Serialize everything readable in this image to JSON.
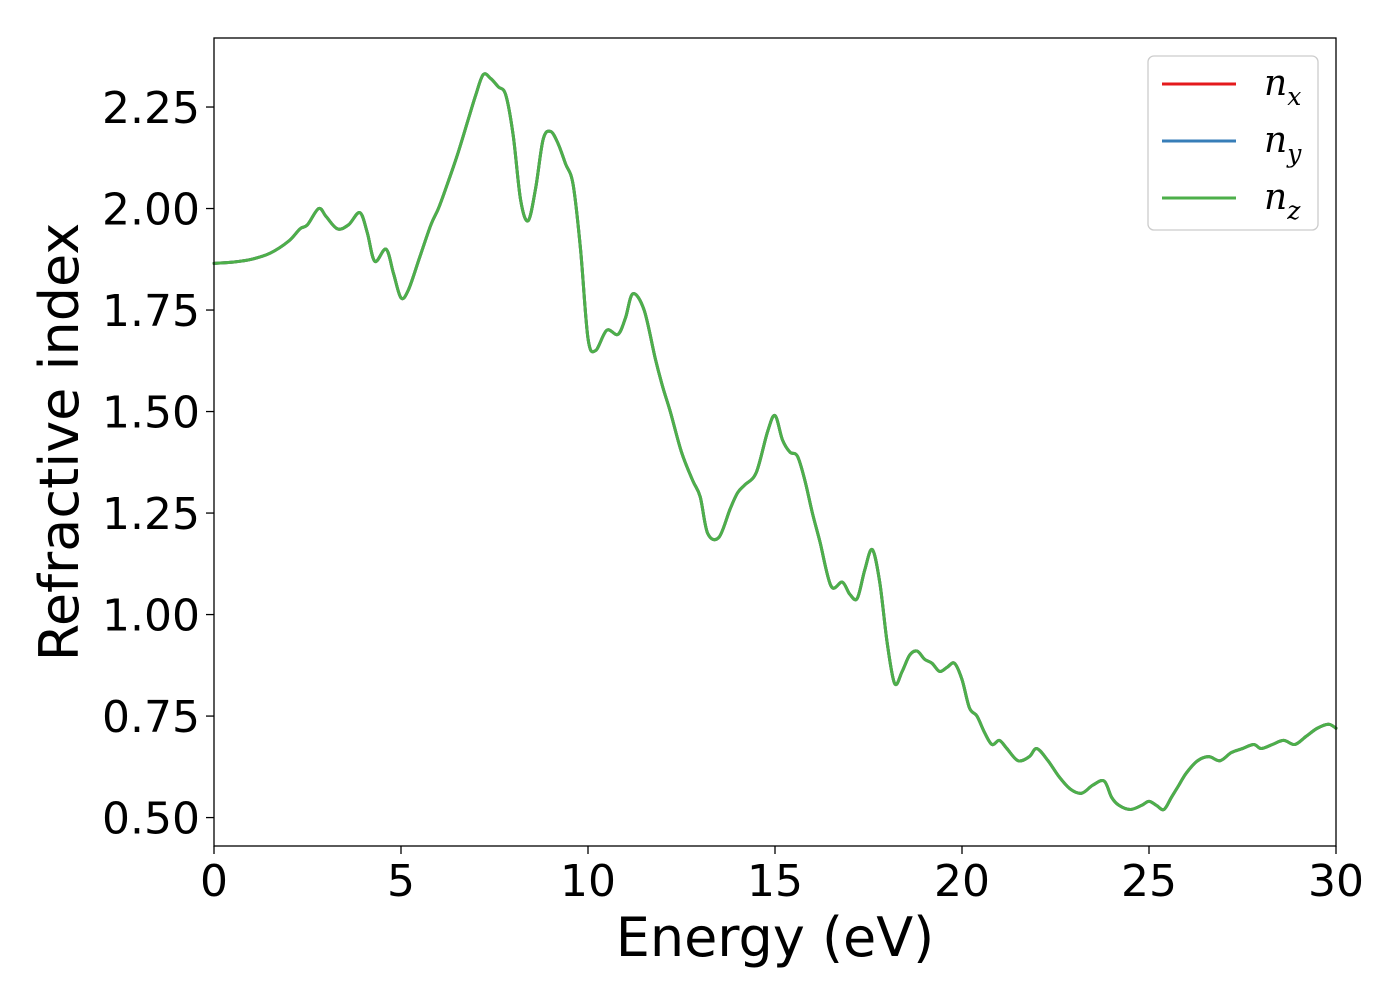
{
  "chart_data": {
    "type": "line",
    "xlabel": "Energy (eV)",
    "ylabel": "Refractive index",
    "xlim": [
      0,
      30
    ],
    "ylim": [
      0.43,
      2.42
    ],
    "xticks": [
      {
        "value": 0,
        "label": "0"
      },
      {
        "value": 5,
        "label": "5"
      },
      {
        "value": 10,
        "label": "10"
      },
      {
        "value": 15,
        "label": "15"
      },
      {
        "value": 20,
        "label": "20"
      },
      {
        "value": 25,
        "label": "25"
      },
      {
        "value": 30,
        "label": "30"
      }
    ],
    "yticks": [
      {
        "value": 0.5,
        "label": "0.50"
      },
      {
        "value": 0.75,
        "label": "0.75"
      },
      {
        "value": 1.0,
        "label": "1.00"
      },
      {
        "value": 1.25,
        "label": "1.25"
      },
      {
        "value": 1.5,
        "label": "1.50"
      },
      {
        "value": 1.75,
        "label": "1.75"
      },
      {
        "value": 2.0,
        "label": "2.00"
      },
      {
        "value": 2.25,
        "label": "2.25"
      }
    ],
    "grid": false,
    "legend": {
      "placement": "top-right",
      "entries": [
        {
          "base": "n",
          "sub": "x",
          "color": "#e41a1c"
        },
        {
          "base": "n",
          "sub": "y",
          "color": "#377eb8"
        },
        {
          "base": "n",
          "sub": "z",
          "color": "#4daf4a"
        }
      ]
    },
    "x": [
      0,
      0.5,
      1,
      1.5,
      2,
      2.3,
      2.5,
      2.8,
      3,
      3.3,
      3.6,
      3.9,
      4.1,
      4.3,
      4.6,
      4.8,
      5,
      5.2,
      5.5,
      5.8,
      6,
      6.2,
      6.5,
      6.8,
      7,
      7.2,
      7.4,
      7.6,
      7.8,
      8,
      8.2,
      8.4,
      8.6,
      8.8,
      9,
      9.2,
      9.4,
      9.6,
      9.8,
      10,
      10.2,
      10.5,
      10.8,
      11,
      11.2,
      11.5,
      11.8,
      12,
      12.2,
      12.5,
      12.8,
      13,
      13.2,
      13.5,
      13.8,
      14,
      14.2,
      14.5,
      14.8,
      15,
      15.2,
      15.4,
      15.6,
      15.8,
      16,
      16.2,
      16.5,
      16.8,
      17,
      17.2,
      17.4,
      17.6,
      17.8,
      18,
      18.2,
      18.4,
      18.6,
      18.8,
      19,
      19.2,
      19.4,
      19.6,
      19.8,
      20,
      20.2,
      20.4,
      20.6,
      20.8,
      21,
      21.2,
      21.5,
      21.8,
      22,
      22.3,
      22.6,
      22.9,
      23.2,
      23.5,
      23.8,
      24,
      24.2,
      24.5,
      24.8,
      25,
      25.2,
      25.4,
      25.6,
      25.8,
      26,
      26.3,
      26.6,
      26.9,
      27.2,
      27.5,
      27.8,
      28,
      28.3,
      28.6,
      28.9,
      29.2,
      29.5,
      29.8,
      30
    ],
    "series": [
      {
        "color": "#e41a1c",
        "values": [
          1.865,
          1.868,
          1.875,
          1.89,
          1.92,
          1.95,
          1.96,
          2.0,
          1.98,
          1.95,
          1.96,
          1.99,
          1.94,
          1.87,
          1.9,
          1.84,
          1.78,
          1.8,
          1.88,
          1.96,
          2.0,
          2.05,
          2.13,
          2.22,
          2.28,
          2.33,
          2.32,
          2.3,
          2.28,
          2.18,
          2.02,
          1.97,
          2.05,
          2.17,
          2.19,
          2.16,
          2.11,
          2.06,
          1.9,
          1.68,
          1.65,
          1.7,
          1.69,
          1.73,
          1.79,
          1.75,
          1.63,
          1.56,
          1.5,
          1.4,
          1.33,
          1.29,
          1.2,
          1.19,
          1.26,
          1.3,
          1.32,
          1.35,
          1.45,
          1.49,
          1.43,
          1.4,
          1.39,
          1.33,
          1.25,
          1.18,
          1.07,
          1.08,
          1.05,
          1.04,
          1.11,
          1.16,
          1.08,
          0.93,
          0.83,
          0.86,
          0.9,
          0.91,
          0.89,
          0.88,
          0.86,
          0.87,
          0.88,
          0.84,
          0.77,
          0.75,
          0.71,
          0.68,
          0.69,
          0.67,
          0.64,
          0.65,
          0.67,
          0.64,
          0.6,
          0.57,
          0.56,
          0.58,
          0.59,
          0.55,
          0.53,
          0.52,
          0.53,
          0.54,
          0.53,
          0.52,
          0.55,
          0.58,
          0.61,
          0.64,
          0.65,
          0.64,
          0.66,
          0.67,
          0.68,
          0.67,
          0.68,
          0.69,
          0.68,
          0.7,
          0.72,
          0.73,
          0.72
        ]
      },
      {
        "color": "#377eb8",
        "values": [
          1.865,
          1.868,
          1.875,
          1.89,
          1.92,
          1.95,
          1.96,
          2.0,
          1.98,
          1.95,
          1.96,
          1.99,
          1.94,
          1.87,
          1.9,
          1.84,
          1.78,
          1.8,
          1.88,
          1.96,
          2.0,
          2.05,
          2.13,
          2.22,
          2.28,
          2.33,
          2.32,
          2.3,
          2.28,
          2.18,
          2.02,
          1.97,
          2.05,
          2.17,
          2.19,
          2.16,
          2.11,
          2.06,
          1.9,
          1.68,
          1.65,
          1.7,
          1.69,
          1.73,
          1.79,
          1.75,
          1.63,
          1.56,
          1.5,
          1.4,
          1.33,
          1.29,
          1.2,
          1.19,
          1.26,
          1.3,
          1.32,
          1.35,
          1.45,
          1.49,
          1.43,
          1.4,
          1.39,
          1.33,
          1.25,
          1.18,
          1.07,
          1.08,
          1.05,
          1.04,
          1.11,
          1.16,
          1.08,
          0.93,
          0.83,
          0.86,
          0.9,
          0.91,
          0.89,
          0.88,
          0.86,
          0.87,
          0.88,
          0.84,
          0.77,
          0.75,
          0.71,
          0.68,
          0.69,
          0.67,
          0.64,
          0.65,
          0.67,
          0.64,
          0.6,
          0.57,
          0.56,
          0.58,
          0.59,
          0.55,
          0.53,
          0.52,
          0.53,
          0.54,
          0.53,
          0.52,
          0.55,
          0.58,
          0.61,
          0.64,
          0.65,
          0.64,
          0.66,
          0.67,
          0.68,
          0.67,
          0.68,
          0.69,
          0.68,
          0.7,
          0.72,
          0.73,
          0.72
        ]
      },
      {
        "color": "#4daf4a",
        "values": [
          1.865,
          1.868,
          1.875,
          1.89,
          1.92,
          1.95,
          1.96,
          2.0,
          1.98,
          1.95,
          1.96,
          1.99,
          1.94,
          1.87,
          1.9,
          1.84,
          1.78,
          1.8,
          1.88,
          1.96,
          2.0,
          2.05,
          2.13,
          2.22,
          2.28,
          2.33,
          2.32,
          2.3,
          2.28,
          2.18,
          2.02,
          1.97,
          2.05,
          2.17,
          2.19,
          2.16,
          2.11,
          2.06,
          1.9,
          1.68,
          1.65,
          1.7,
          1.69,
          1.73,
          1.79,
          1.75,
          1.63,
          1.56,
          1.5,
          1.4,
          1.33,
          1.29,
          1.2,
          1.19,
          1.26,
          1.3,
          1.32,
          1.35,
          1.45,
          1.49,
          1.43,
          1.4,
          1.39,
          1.33,
          1.25,
          1.18,
          1.07,
          1.08,
          1.05,
          1.04,
          1.11,
          1.16,
          1.08,
          0.93,
          0.83,
          0.86,
          0.9,
          0.91,
          0.89,
          0.88,
          0.86,
          0.87,
          0.88,
          0.84,
          0.77,
          0.75,
          0.71,
          0.68,
          0.69,
          0.67,
          0.64,
          0.65,
          0.67,
          0.64,
          0.6,
          0.57,
          0.56,
          0.58,
          0.59,
          0.55,
          0.53,
          0.52,
          0.53,
          0.54,
          0.53,
          0.52,
          0.55,
          0.58,
          0.61,
          0.64,
          0.65,
          0.64,
          0.66,
          0.67,
          0.68,
          0.67,
          0.68,
          0.69,
          0.68,
          0.7,
          0.72,
          0.73,
          0.72
        ]
      }
    ]
  }
}
